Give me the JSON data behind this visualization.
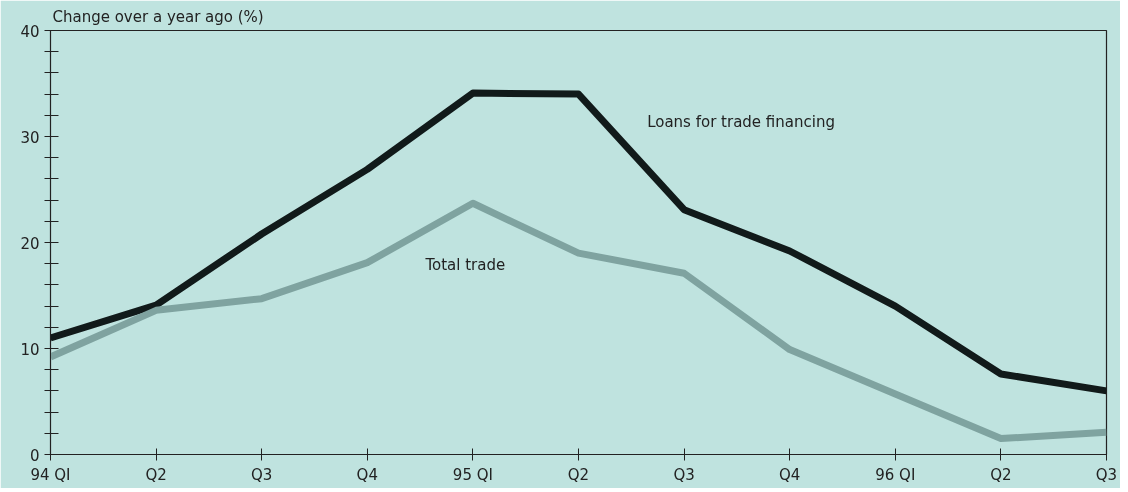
{
  "chart_data": {
    "type": "line",
    "ylabel": "Change over a year ago (%)",
    "categories": [
      "94 QI",
      "Q2",
      "Q3",
      "Q4",
      "95 QI",
      "Q2",
      "Q3",
      "Q4",
      "96 QI",
      "Q2",
      "Q3"
    ],
    "series": [
      {
        "name": "Loans for trade financing",
        "color": "#111a1a",
        "values": [
          11.0,
          14.1,
          20.8,
          26.9,
          34.1,
          34.0,
          23.1,
          19.2,
          14.0,
          7.6,
          6.0
        ]
      },
      {
        "name": "Total trade",
        "color": "#7fa3a0",
        "values": [
          9.2,
          13.6,
          14.7,
          18.1,
          23.7,
          19.0,
          17.1,
          9.9,
          5.7,
          1.5,
          2.1
        ]
      }
    ],
    "ylim": [
      0,
      40
    ],
    "yticks": [
      0,
      {
        "value": 2,
        "label": null
      },
      {
        "value": 4,
        "label": null
      },
      {
        "value": 6,
        "label": null
      },
      {
        "value": 8,
        "label": null
      },
      10,
      {
        "value": 12,
        "label": null
      },
      {
        "value": 14,
        "label": null
      },
      {
        "value": 16,
        "label": null
      },
      {
        "value": 18,
        "label": null
      },
      20,
      {
        "value": 22,
        "label": null
      },
      {
        "value": 24,
        "label": null
      },
      {
        "value": 26,
        "label": null
      },
      {
        "value": 28,
        "label": null
      },
      30,
      {
        "value": 32,
        "label": null
      },
      {
        "value": 34,
        "label": null
      },
      {
        "value": 36,
        "label": null
      },
      {
        "value": 38,
        "label": null
      },
      40
    ],
    "grid": false,
    "legend": false,
    "marker": "none",
    "line_style": "solid"
  }
}
